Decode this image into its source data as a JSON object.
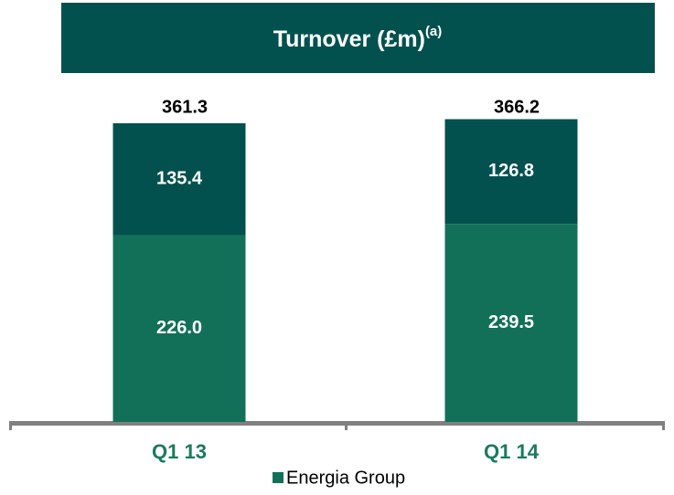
{
  "chart_data": {
    "type": "stacked-bar",
    "title": "Turnover (£m)",
    "title_superscript": "(a)",
    "categories": [
      "Q1 13",
      "Q1 14"
    ],
    "series": [
      {
        "name": "Energia Group",
        "color": "#127058",
        "values": [
          226.0,
          239.5
        ],
        "value_labels": [
          "226.0",
          "239.5"
        ]
      },
      {
        "color": "#03514f",
        "values": [
          135.4,
          126.8
        ]
      }
    ],
    "totals": [
      361.3,
      366.2
    ],
    "ylim": [
      0,
      400
    ],
    "legend": "bottom"
  }
}
